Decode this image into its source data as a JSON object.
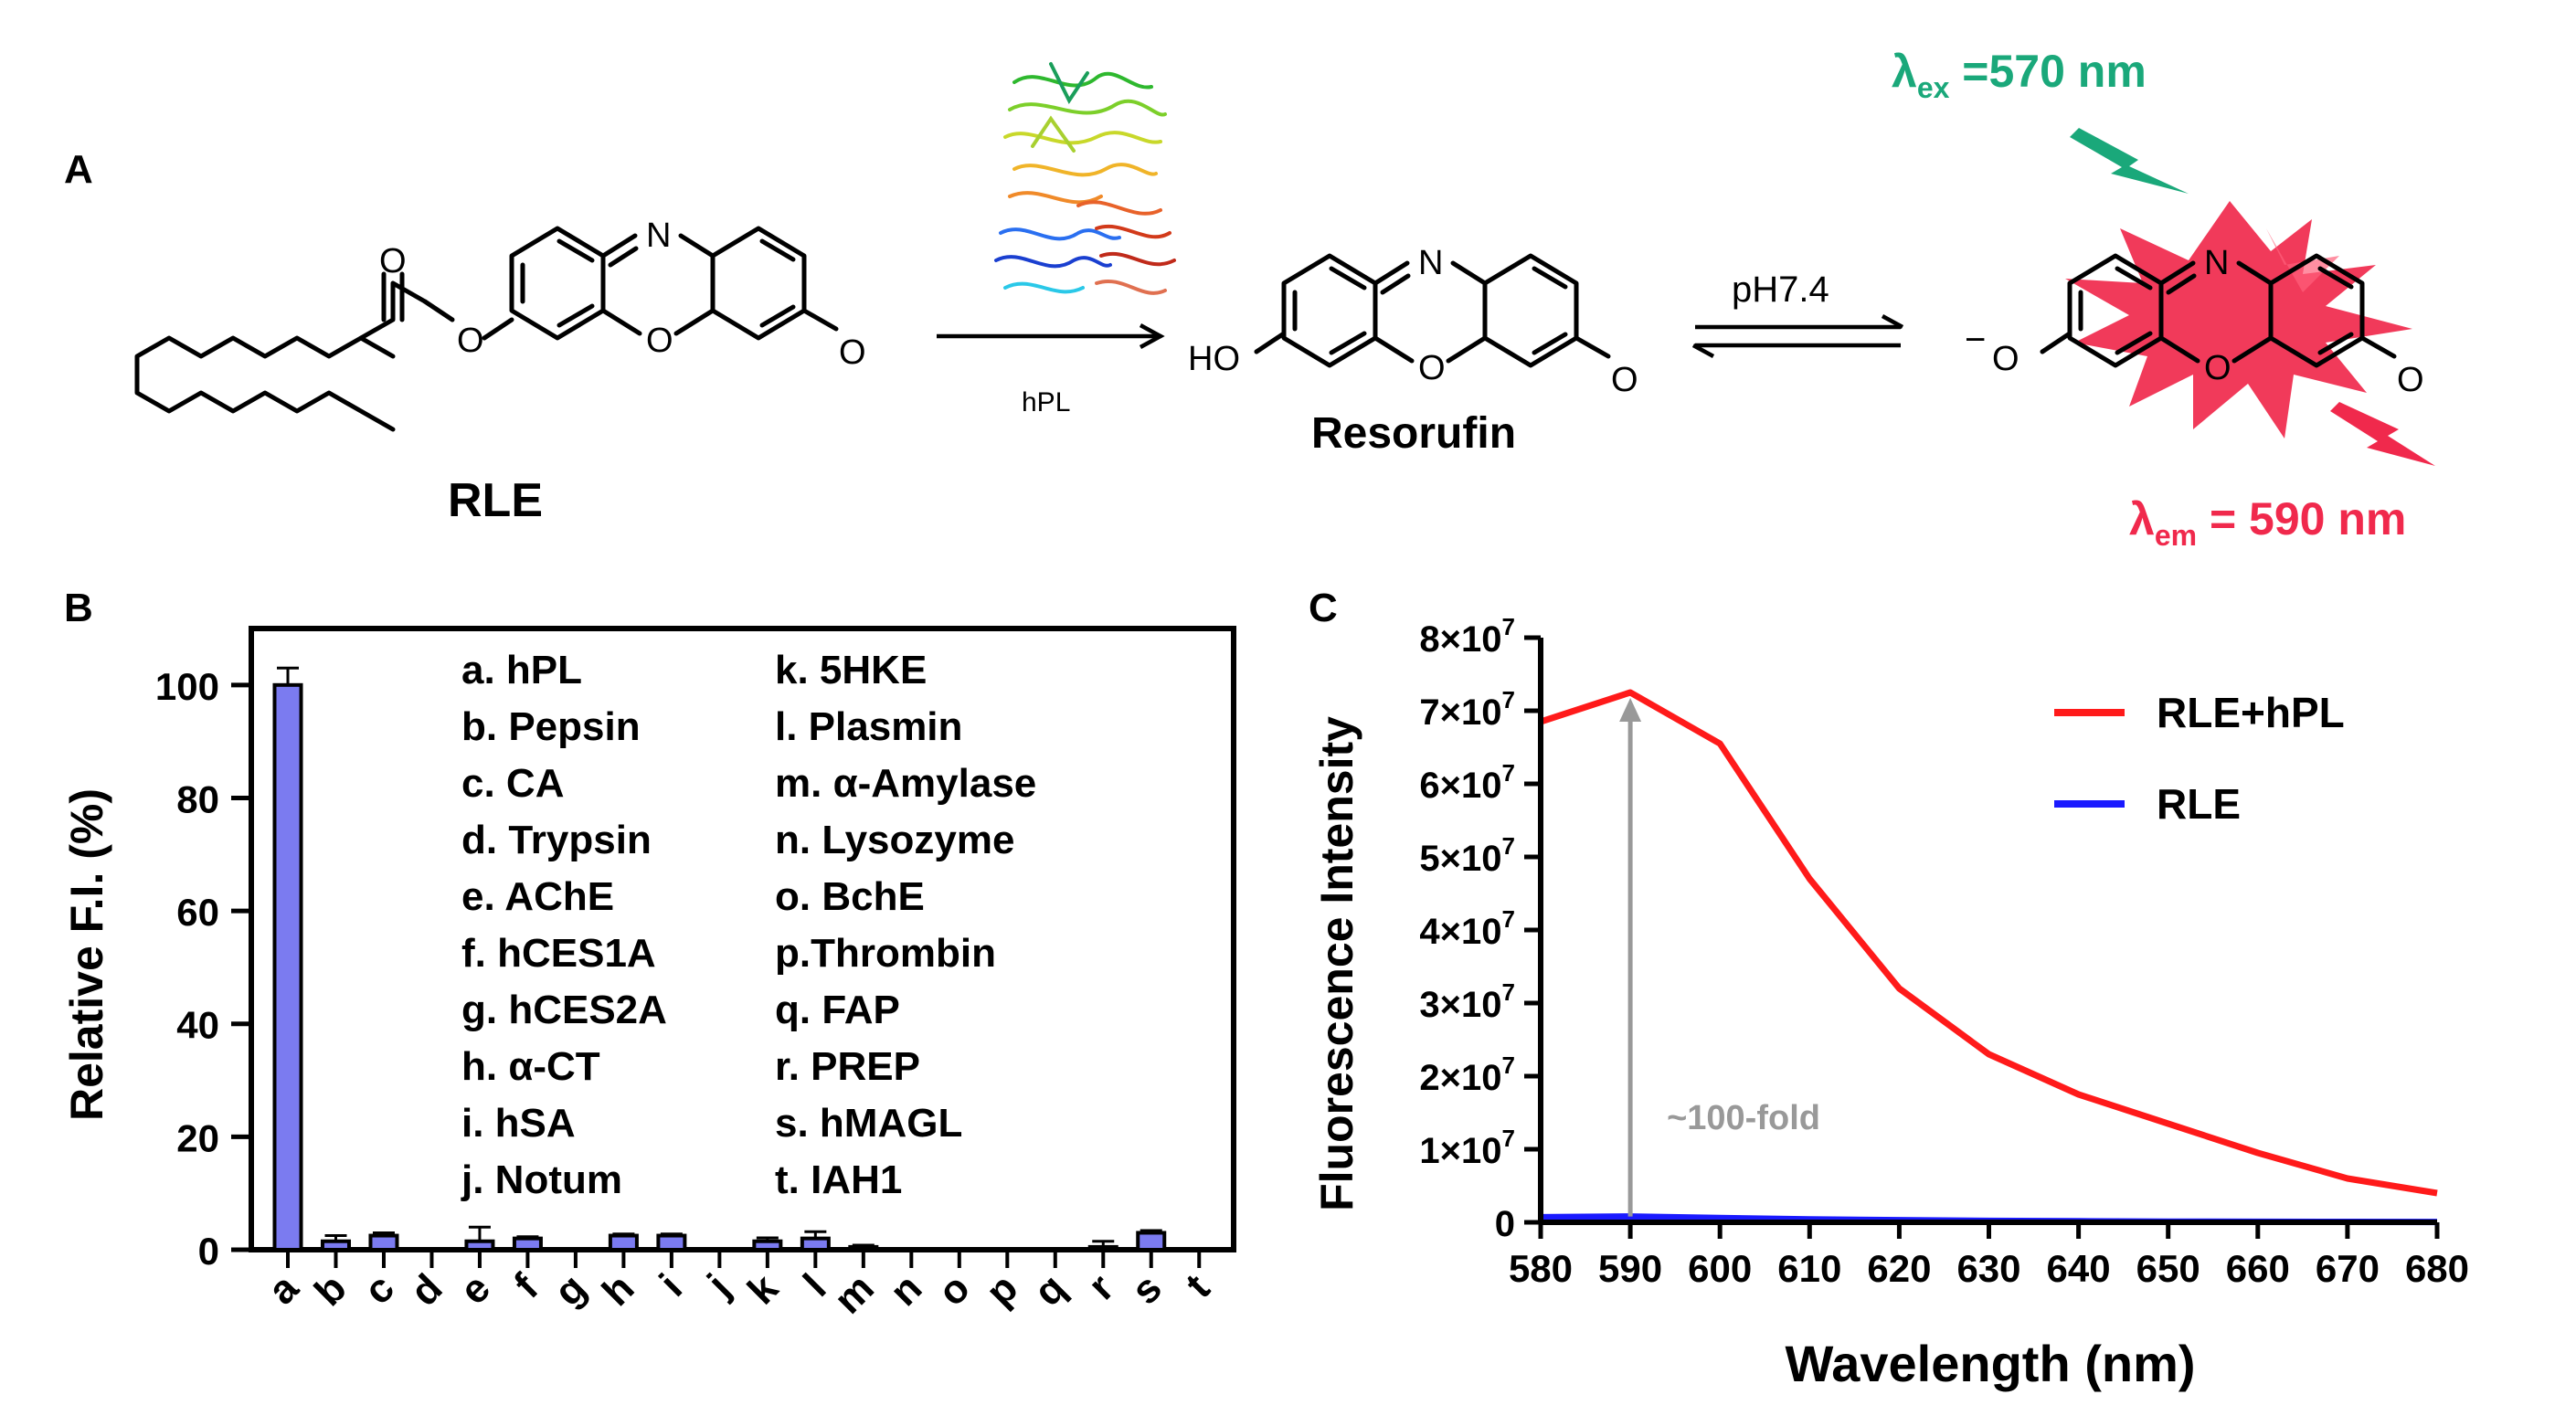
{
  "panels": {
    "a": "A",
    "b": "B",
    "c": "C"
  },
  "scheme": {
    "substrate_label": "RLE",
    "enzyme_label": "hPL",
    "product_label": "Resorufin",
    "condition_label": "pH7.4",
    "ho_label": "HO",
    "o_minus_label": "O",
    "minus_sign": "−",
    "n_atom": "N",
    "o_atom": "O",
    "lambda_ex": {
      "symbol": "λ",
      "sub": "ex",
      "rest": " =570 nm",
      "color": "#1aa87a"
    },
    "lambda_em": {
      "symbol": "λ",
      "sub": "em",
      "rest": " = 590 nm",
      "color": "#f0294c"
    },
    "glow_color": "#f0294c"
  },
  "chart_data": [
    {
      "panel": "B",
      "type": "bar",
      "ylabel": "Relative F.I. (%)",
      "ylim": [
        0,
        110
      ],
      "yticks": [
        0,
        20,
        40,
        60,
        80,
        100
      ],
      "categories": [
        "a",
        "b",
        "c",
        "d",
        "e",
        "f",
        "g",
        "h",
        "i",
        "j",
        "k",
        "l",
        "m",
        "n",
        "o",
        "p",
        "q",
        "r",
        "s",
        "t"
      ],
      "values": [
        100,
        1.5,
        2.5,
        0,
        1.5,
        2.0,
        0,
        2.5,
        2.5,
        0,
        1.5,
        2.0,
        0.5,
        0,
        0,
        0,
        0,
        0.5,
        3.0,
        0
      ],
      "errors": [
        3,
        1.0,
        0.5,
        0,
        2.5,
        0.3,
        0,
        0.3,
        0.3,
        0,
        0.6,
        1.2,
        0.3,
        0,
        0,
        0,
        0,
        1.0,
        0.4,
        0
      ],
      "bar_color": "#7b7bf0",
      "legend_entries": [
        "a. hPL",
        "b. Pepsin",
        "c. CA",
        "d. Trypsin",
        "e. AChE",
        "f. hCES1A",
        "g. hCES2A",
        "h. α-CT",
        "i. hSA",
        "j. Notum",
        "k. 5HKE",
        "l. Plasmin",
        "m. α-Amylase",
        "n. Lysozyme",
        "o. BchE",
        "p.Thrombin",
        "q. FAP",
        "r. PREP",
        "s. hMAGL",
        "t. IAH1"
      ]
    },
    {
      "panel": "C",
      "type": "line",
      "xlabel": "Wavelength (nm)",
      "ylabel": "Fluorescence Intensity",
      "xlim": [
        580,
        680
      ],
      "ylim": [
        0,
        80000000
      ],
      "xticks": [
        580,
        590,
        600,
        610,
        620,
        630,
        640,
        650,
        660,
        670,
        680
      ],
      "ytick_labels": [
        {
          "v": 0,
          "m": "0",
          "e": ""
        },
        {
          "v": 10000000,
          "m": "1×10",
          "e": "7"
        },
        {
          "v": 20000000,
          "m": "2×10",
          "e": "7"
        },
        {
          "v": 30000000,
          "m": "3×10",
          "e": "7"
        },
        {
          "v": 40000000,
          "m": "4×10",
          "e": "7"
        },
        {
          "v": 50000000,
          "m": "5×10",
          "e": "7"
        },
        {
          "v": 60000000,
          "m": "6×10",
          "e": "7"
        },
        {
          "v": 70000000,
          "m": "7×10",
          "e": "7"
        },
        {
          "v": 80000000,
          "m": "8×10",
          "e": "7"
        }
      ],
      "x": [
        580,
        590,
        600,
        610,
        620,
        630,
        640,
        650,
        660,
        670,
        680
      ],
      "series": [
        {
          "name": "RLE+hPL",
          "color": "#ff1a1a",
          "values": [
            68500000,
            72500000,
            65500000,
            47000000,
            32000000,
            23000000,
            17500000,
            13500000,
            9500000,
            6000000,
            4000000
          ]
        },
        {
          "name": "RLE",
          "color": "#1a1aff",
          "values": [
            700000,
            800000,
            600000,
            400000,
            300000,
            200000,
            150000,
            100000,
            80000,
            60000,
            50000
          ]
        }
      ],
      "annotation": {
        "text": "~100-fold",
        "x": 590,
        "from": 800000,
        "to": 72500000,
        "color": "#999999"
      },
      "legend_position": "top-right"
    }
  ]
}
